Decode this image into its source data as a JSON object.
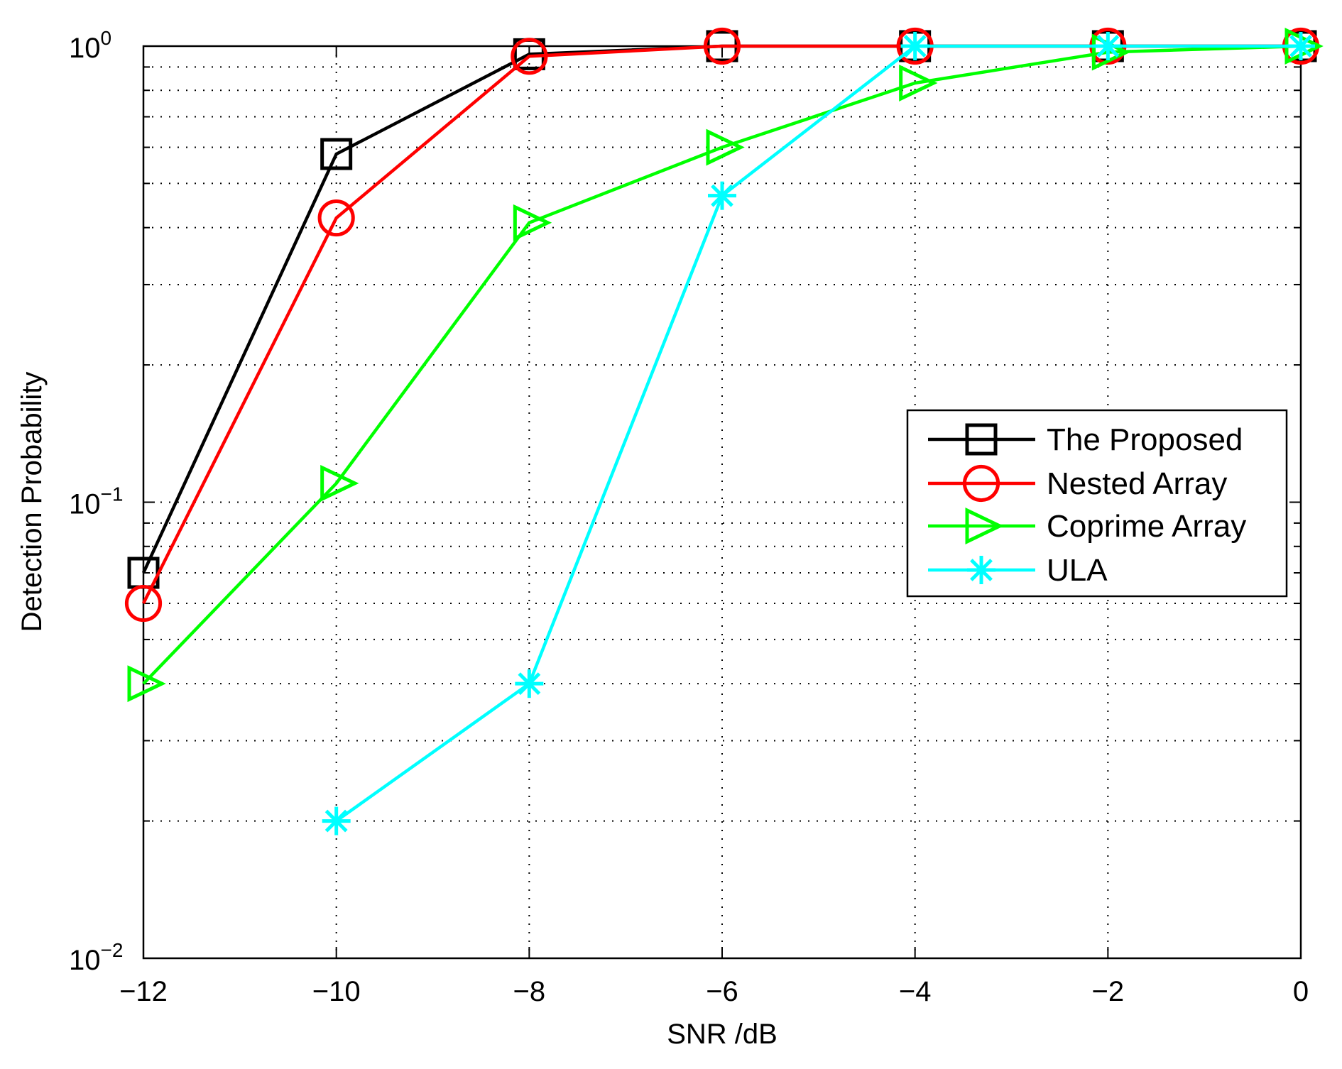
{
  "chart_data": {
    "type": "line",
    "xlabel": "SNR  /dB",
    "ylabel": "Detection Probability",
    "y_scale": "log",
    "xlim": [
      -12,
      0
    ],
    "ylim": [
      0.01,
      1
    ],
    "grid": true,
    "legend_position": "right",
    "x_ticks": [
      -12,
      -10,
      -8,
      -6,
      -4,
      -2,
      0
    ],
    "x_tick_labels": [
      "−12",
      "−10",
      "−8",
      "−6",
      "−4",
      "−2",
      "0"
    ],
    "y_ticks": [
      0.01,
      0.1,
      1
    ],
    "y_tick_labels": [
      {
        "base": "10",
        "exp": "−2"
      },
      {
        "base": "10",
        "exp": "−1"
      },
      {
        "base": "10",
        "exp": "0"
      }
    ],
    "series": [
      {
        "name": "The Proposed",
        "color": "#000000",
        "marker": "square",
        "x": [
          -12,
          -10,
          -8,
          -6,
          -4,
          -2,
          0
        ],
        "y": [
          0.07,
          0.58,
          0.96,
          1.0,
          1.0,
          1.0,
          1.0
        ]
      },
      {
        "name": "Nested Array",
        "color": "#ff0000",
        "marker": "circle",
        "x": [
          -12,
          -10,
          -8,
          -6,
          -4,
          -2,
          0
        ],
        "y": [
          0.06,
          0.42,
          0.95,
          1.0,
          1.0,
          1.0,
          1.0
        ]
      },
      {
        "name": "Coprime Array",
        "color": "#00ff00",
        "marker": "triangle-right",
        "x": [
          -12,
          -10,
          -8,
          -6,
          -4,
          -2,
          0
        ],
        "y": [
          0.04,
          0.11,
          0.41,
          0.6,
          0.83,
          0.97,
          1.0
        ]
      },
      {
        "name": "ULA",
        "color": "#00ffff",
        "marker": "star",
        "x": [
          -10,
          -8,
          -6,
          -4,
          -2,
          0
        ],
        "y": [
          0.02,
          0.04,
          0.47,
          1.0,
          1.0,
          1.0
        ]
      }
    ]
  }
}
